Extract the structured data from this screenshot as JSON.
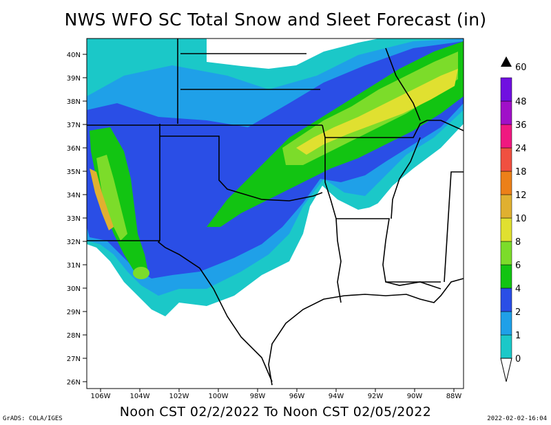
{
  "title": "NWS WFO SC Total Snow and Sleet Forecast (in)",
  "subtitle": "Noon CST 02/2/2022 To Noon CST 02/05/2022",
  "credit": "GrADS: COLA/IGES",
  "timestamp": "2022-02-02-16:04",
  "lat_labels": [
    "40N",
    "39N",
    "38N",
    "37N",
    "36N",
    "35N",
    "34N",
    "33N",
    "32N",
    "31N",
    "30N",
    "29N",
    "28N",
    "27N",
    "26N"
  ],
  "lon_labels": [
    "106W",
    "104W",
    "102W",
    "100W",
    "98W",
    "96W",
    "94W",
    "92W",
    "90W",
    "88W"
  ],
  "colorbar": {
    "labels": [
      "0",
      "1",
      "2",
      "4",
      "6",
      "8",
      "10",
      "12",
      "18",
      "24",
      "36",
      "48",
      "60"
    ],
    "colors": [
      "#1bc8c8",
      "#1fa0e8",
      "#2a4ee6",
      "#12c412",
      "#7cdc2a",
      "#e0e030",
      "#e0b030",
      "#ec8018",
      "#f05040",
      "#f01880",
      "#a010c8",
      "#7010e0"
    ],
    "top_color": "#000000"
  },
  "legend_colors": {
    "none": "#ffffff",
    "c0": "#1bc8c8",
    "c1": "#1fa0e8",
    "c2": "#2a4ee6",
    "c4": "#12c412",
    "c6": "#7cdc2a",
    "c8": "#e0e030",
    "c10": "#e0b030",
    "c12": "#ec8018"
  }
}
